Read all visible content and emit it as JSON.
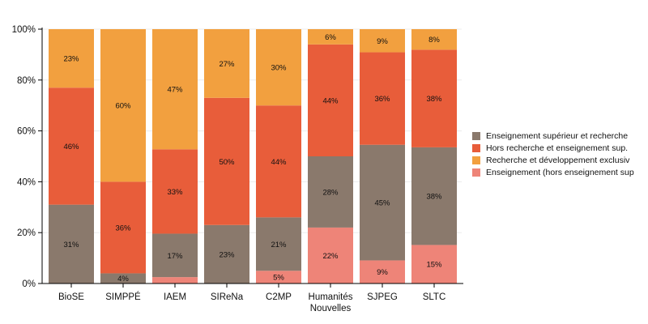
{
  "chart_data": {
    "type": "bar",
    "stacked": true,
    "normalized": true,
    "categories": [
      "BioSE",
      "SIMPPÉ",
      "IAEM",
      "SIReNa",
      "C2MP",
      "Humanités Nouvelles",
      "SJPEG",
      "SLTC"
    ],
    "series": [
      {
        "name": "Enseignement (hors enseignement sup",
        "color": "#ee8478",
        "values": [
          0,
          0,
          2.5,
          0,
          5,
          22,
          9,
          15
        ]
      },
      {
        "name": "Enseignement supérieur et recherche",
        "color": "#8a796c",
        "values": [
          31,
          4,
          17,
          23,
          21,
          28,
          45,
          38
        ]
      },
      {
        "name": "Hors recherche et enseignement sup.",
        "color": "#e85d3a",
        "values": [
          46,
          36,
          33,
          50,
          44,
          44,
          36,
          38
        ]
      },
      {
        "name": "Recherche et développement exclusiv",
        "color": "#f2a03f",
        "values": [
          23,
          60,
          47,
          27,
          30,
          6,
          9,
          8
        ]
      }
    ],
    "legend_order": [
      1,
      2,
      3,
      0
    ],
    "ylim": [
      0,
      100
    ],
    "yticks": [
      "0%",
      "20%",
      "40%",
      "60%",
      "80%",
      "100%"
    ],
    "grid": true,
    "legend": "right",
    "xlabel": "",
    "ylabel": ""
  }
}
